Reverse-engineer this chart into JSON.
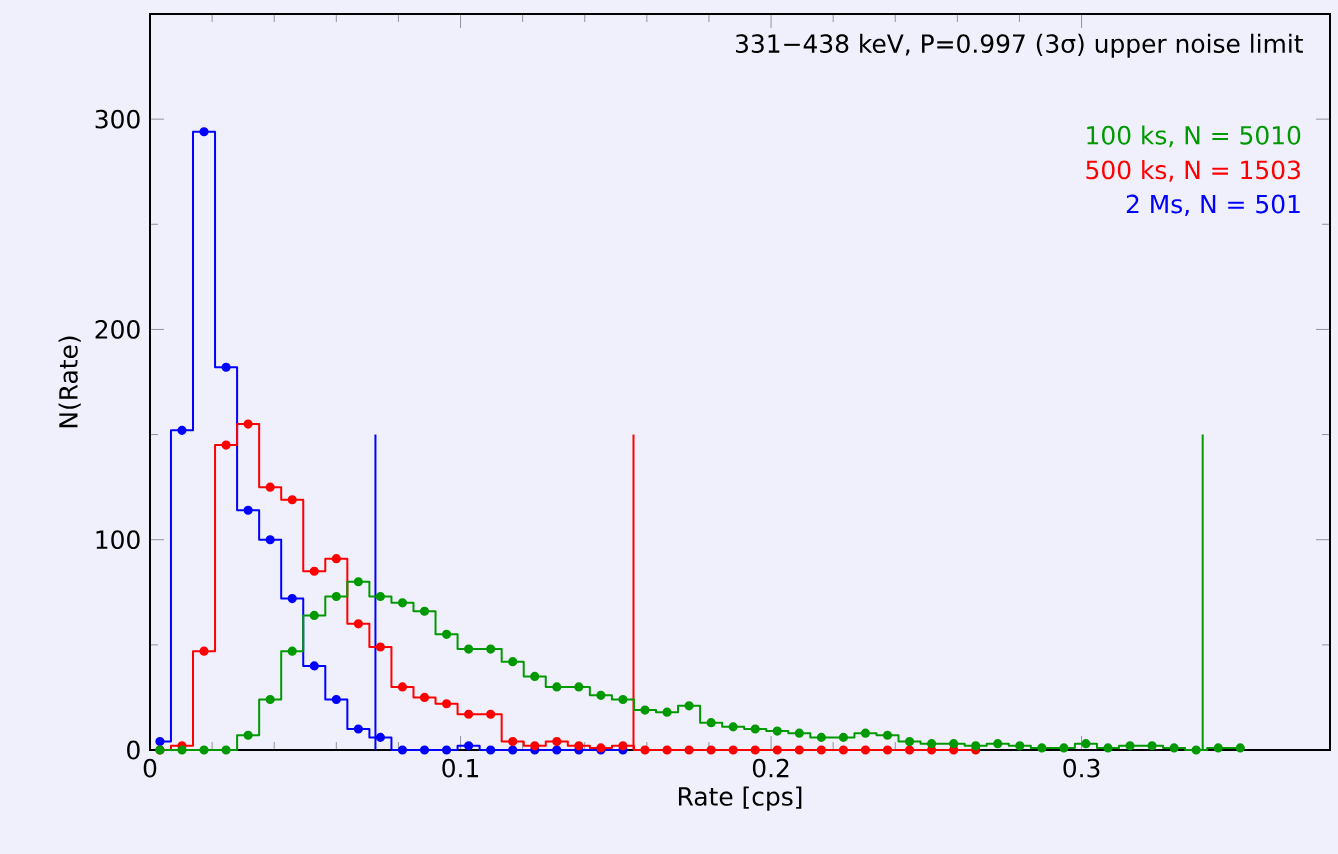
{
  "chart_data": {
    "type": "step",
    "xlabel": "Rate [cps]",
    "ylabel": "N(Rate)",
    "annotations": [
      "331−438 keV, P=0.997 (3σ) upper noise limit"
    ],
    "xlim": [
      0,
      0.38
    ],
    "ylim": [
      0,
      350
    ],
    "xticks": [
      0,
      0.1,
      0.2,
      0.3
    ],
    "yticks": [
      0,
      100,
      200,
      300
    ],
    "legend": "top right",
    "grid": false,
    "series": [
      {
        "name": "100 ks, N = 5010",
        "color": "#009900",
        "marker": "circle",
        "x": [
          0.0032,
          0.0103,
          0.0174,
          0.0245,
          0.0316,
          0.0387,
          0.0458,
          0.0529,
          0.06,
          0.0671,
          0.0742,
          0.0813,
          0.0884,
          0.0955,
          0.1026,
          0.1097,
          0.1168,
          0.1239,
          0.131,
          0.1381,
          0.1452,
          0.1523,
          0.1594,
          0.1665,
          0.1736,
          0.1807,
          0.1878,
          0.1949,
          0.202,
          0.2091,
          0.2162,
          0.2233,
          0.2304,
          0.2375,
          0.2446,
          0.2517,
          0.2588,
          0.2659,
          0.273,
          0.2801,
          0.2872,
          0.2943,
          0.3014,
          0.3085,
          0.3156,
          0.3227,
          0.3298,
          0.3369,
          0.344,
          0.3511
        ],
        "values": [
          0,
          0,
          0,
          0,
          7,
          24,
          47,
          64,
          73,
          80,
          73,
          70,
          66,
          55,
          48,
          48,
          42,
          35,
          30,
          30,
          26,
          24,
          19,
          18,
          21,
          13,
          11,
          10,
          9,
          8,
          6,
          6,
          8,
          7,
          4,
          3,
          3,
          2,
          3,
          2,
          1,
          1,
          3,
          1,
          2,
          2,
          1,
          0,
          1,
          1
        ]
      },
      {
        "name": "500 ks, N = 1503",
        "color": "#ff0000",
        "marker": "circle",
        "x": [
          0.0032,
          0.0103,
          0.0174,
          0.0245,
          0.0316,
          0.0387,
          0.0458,
          0.0529,
          0.06,
          0.0671,
          0.0742,
          0.0813,
          0.0884,
          0.0955,
          0.1026,
          0.1097,
          0.1168,
          0.1239,
          0.131,
          0.1381,
          0.1452,
          0.1523,
          0.1594,
          0.1665,
          0.1736,
          0.1807,
          0.1878,
          0.1949,
          0.202,
          0.2091,
          0.2162,
          0.2233,
          0.2304,
          0.2375,
          0.2446,
          0.2517,
          0.2588,
          0.2659
        ],
        "values": [
          0,
          2,
          47,
          145,
          155,
          125,
          119,
          85,
          91,
          60,
          49,
          30,
          25,
          22,
          17,
          17,
          4,
          2,
          4,
          2,
          1,
          2,
          0,
          0,
          0,
          0,
          0,
          0,
          0,
          0,
          0,
          0,
          0,
          0,
          0,
          0,
          0,
          0
        ]
      },
      {
        "name": "2 Ms, N = 501",
        "color": "#0000ff",
        "marker": "circle",
        "x": [
          0.0032,
          0.0103,
          0.0174,
          0.0245,
          0.0316,
          0.0387,
          0.0458,
          0.0529,
          0.06,
          0.0671,
          0.0742,
          0.0813,
          0.0884,
          0.0955,
          0.1026,
          0.1097,
          0.1168,
          0.1239,
          0.131,
          0.1381,
          0.1452,
          0.1523
        ],
        "values": [
          4,
          152,
          294,
          182,
          114,
          100,
          72,
          40,
          24,
          10,
          6,
          0,
          0,
          0,
          2,
          0,
          0,
          0,
          0,
          0,
          0,
          0
        ]
      },
      {
        "type": "line",
        "color": "#0000ff",
        "marker": "none",
        "x": [
          0.0726,
          0.0726
        ],
        "values": [
          0,
          150
        ]
      },
      {
        "type": "line",
        "color": "#ff0000",
        "marker": "none",
        "x": [
          0.1557,
          0.1557
        ],
        "values": [
          0,
          150
        ]
      },
      {
        "type": "line",
        "color": "#009900",
        "marker": "none",
        "x": [
          0.339,
          0.339
        ],
        "values": [
          0,
          150
        ]
      }
    ]
  }
}
